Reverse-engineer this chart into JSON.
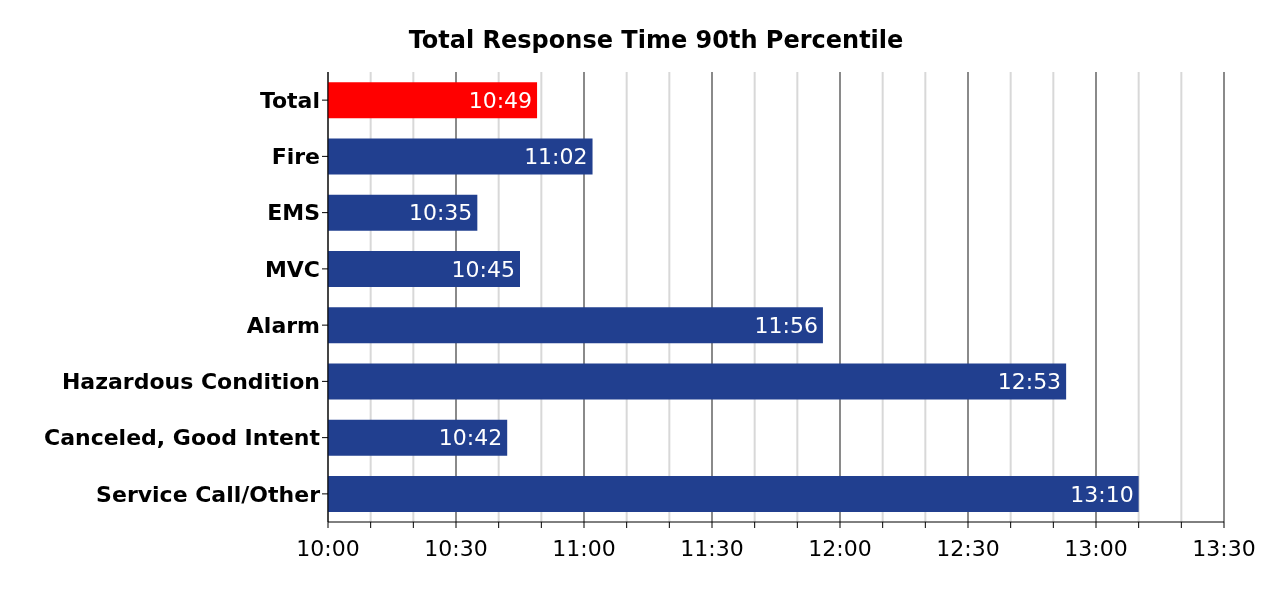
{
  "chart_data": {
    "type": "bar",
    "orientation": "horizontal",
    "title": "Total Response Time 90th Percentile",
    "categories": [
      "Total",
      "Fire",
      "EMS",
      "MVC",
      "Alarm",
      "Hazardous Condition",
      "Canceled, Good Intent",
      "Service Call/Other"
    ],
    "values": [
      649,
      662,
      635,
      645,
      716,
      773,
      642,
      790
    ],
    "value_labels": [
      "10:49",
      "11:02",
      "10:35",
      "10:45",
      "11:56",
      "12:53",
      "10:42",
      "13:10"
    ],
    "colors": [
      "#ff0000",
      "#213f8f",
      "#213f8f",
      "#213f8f",
      "#213f8f",
      "#213f8f",
      "#213f8f",
      "#213f8f"
    ],
    "xlim": [
      600,
      810
    ],
    "xticks": [
      {
        "value": 600,
        "label": "10:00"
      },
      {
        "value": 610,
        "label": null
      },
      {
        "value": 620,
        "label": null
      },
      {
        "value": 630,
        "label": "10:30"
      },
      {
        "value": 640,
        "label": null
      },
      {
        "value": 650,
        "label": null
      },
      {
        "value": 660,
        "label": "11:00"
      },
      {
        "value": 670,
        "label": null
      },
      {
        "value": 680,
        "label": null
      },
      {
        "value": 690,
        "label": "11:30"
      },
      {
        "value": 700,
        "label": null
      },
      {
        "value": 710,
        "label": null
      },
      {
        "value": 720,
        "label": "12:00"
      },
      {
        "value": 730,
        "label": null
      },
      {
        "value": 740,
        "label": null
      },
      {
        "value": 750,
        "label": "12:30"
      },
      {
        "value": 760,
        "label": null
      },
      {
        "value": 770,
        "label": null
      },
      {
        "value": 780,
        "label": "13:00"
      },
      {
        "value": 790,
        "label": null
      },
      {
        "value": 800,
        "label": null
      },
      {
        "value": 810,
        "label": "13:30"
      }
    ],
    "grid": "x"
  }
}
